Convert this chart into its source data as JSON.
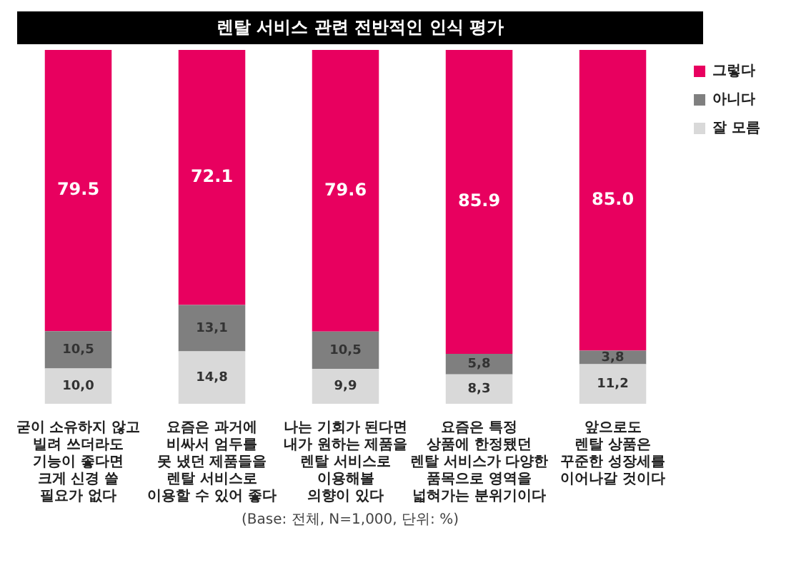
{
  "chart_data": {
    "type": "bar",
    "title": "렌탈 서비스 관련 전반적인 인식 평가",
    "stacked": true,
    "legend": "top right",
    "categories": [
      "굳이 소유하지 않고\n빌려 쓰더라도\n기능이 좋다면\n크게 신경 쓸\n필요가 없다",
      "요즘은 과거에\n비싸서 엄두를\n못 냈던 제품들을\n렌탈 서비스로\n이용할 수 있어 좋다",
      "나는 기회가 된다면\n내가 원하는 제품을\n렌탈 서비스로\n이용해볼\n의향이 있다",
      "요즘은 특정\n상품에 한정됐던\n렌탈 서비스가 다양한\n품목으로 영역을\n넓혀가는 분위기이다",
      "앞으로도\n렌탈 상품은\n꾸준한 성장세를\n이어나갈 것이다"
    ],
    "series": [
      {
        "name": "잘 모름",
        "color": "#d9d9d9",
        "values": [
          10.0,
          14.8,
          9.9,
          8.3,
          11.2
        ],
        "value_labels": [
          "10,0",
          "14,8",
          "9,9",
          "8,3",
          "11,2"
        ]
      },
      {
        "name": "아니다",
        "color": "#7f7f7f",
        "values": [
          10.5,
          13.1,
          10.5,
          5.8,
          3.8
        ],
        "value_labels": [
          "10,5",
          "13,1",
          "10,5",
          "5,8",
          "3,8"
        ]
      },
      {
        "name": "그렇다",
        "color": "#e8005f",
        "values": [
          79.5,
          72.1,
          79.6,
          85.9,
          85.0
        ],
        "value_labels": [
          "79.5",
          "72.1",
          "79.6",
          "85.9",
          "85.0"
        ]
      }
    ],
    "annotations": [
      "(Base: 전체, N=1,000, 단위: %)"
    ]
  }
}
